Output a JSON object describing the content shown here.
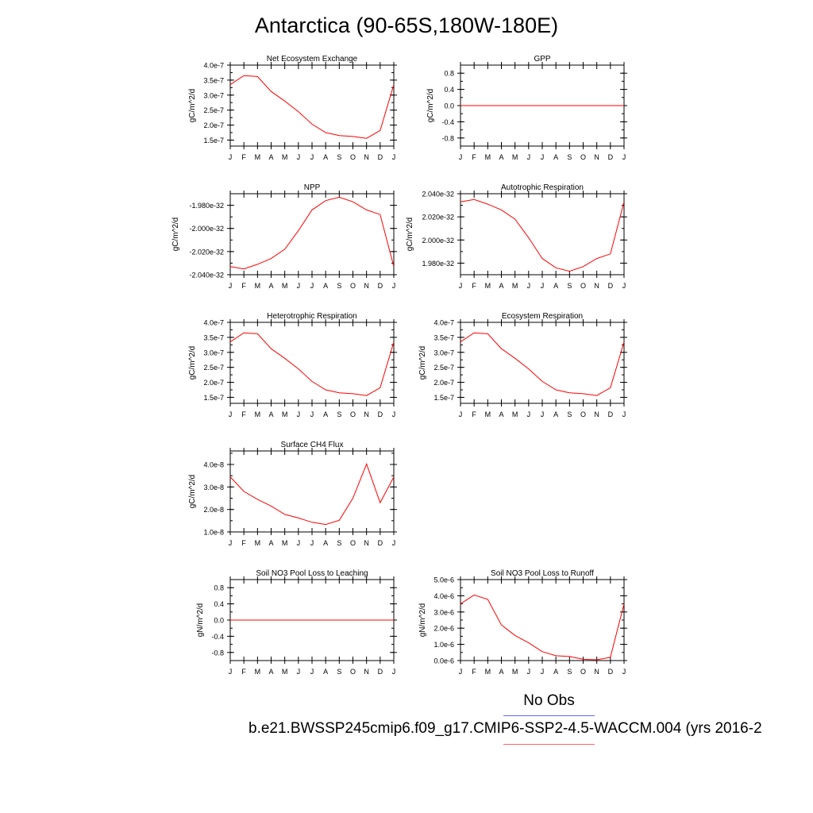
{
  "title": "Antarctica (90-65S,180W-180E)",
  "legend": {
    "obs_label": "No Obs",
    "case_label": "b.e21.BWSSP245cmip6.f09_g17.CMIP6-SSP2-4.5-WACCM.004 (yrs 2016-2",
    "obs_color": "#0000ff",
    "case_color": "#ff0000"
  },
  "chart_data": [
    {
      "type": "line",
      "title": "Net Ecosystem Exchange",
      "ylabel": "gC/m^2/d",
      "x": [
        "J",
        "F",
        "M",
        "A",
        "M",
        "J",
        "J",
        "A",
        "S",
        "O",
        "N",
        "D",
        "J"
      ],
      "yticks": [
        "1.5e-7",
        "2.0e-7",
        "2.5e-7",
        "3.0e-7",
        "3.5e-7",
        "4.0e-7"
      ],
      "ytick_values": [
        1.5e-07,
        2e-07,
        2.5e-07,
        3e-07,
        3.5e-07,
        4e-07
      ],
      "ylim": [
        1.3e-07,
        4e-07
      ],
      "series": [
        {
          "values": [
            3.35e-07,
            3.65e-07,
            3.62e-07,
            3.12e-07,
            2.8e-07,
            2.45e-07,
            2.03e-07,
            1.75e-07,
            1.65e-07,
            1.62e-07,
            1.56e-07,
            1.82e-07,
            3.35e-07
          ],
          "color": "#ff0000"
        }
      ]
    },
    {
      "type": "line",
      "title": "GPP",
      "ylabel": "gC/m^2/d",
      "x": [
        "J",
        "F",
        "M",
        "A",
        "M",
        "J",
        "J",
        "A",
        "S",
        "O",
        "N",
        "D",
        "J"
      ],
      "yticks": [
        "-0.8",
        "-0.4",
        "0.0",
        "0.4",
        "0.8"
      ],
      "ytick_values": [
        -0.8,
        -0.4,
        0.0,
        0.4,
        0.8
      ],
      "ylim": [
        -1.0,
        1.0
      ],
      "series": [
        {
          "values": [
            0,
            0,
            0,
            0,
            0,
            0,
            0,
            0,
            0,
            0,
            0,
            0,
            0
          ],
          "color": "#ff0000"
        }
      ]
    },
    {
      "type": "line",
      "title": "NPP",
      "ylabel": "gC/m^2/d",
      "x": [
        "J",
        "F",
        "M",
        "A",
        "M",
        "J",
        "J",
        "A",
        "S",
        "O",
        "N",
        "D",
        "J"
      ],
      "yticks": [
        "-2.040e-32",
        "-2.020e-32",
        "-2.000e-32",
        "-1.980e-32"
      ],
      "ytick_values": [
        -2.04e-32,
        -2.02e-32,
        -2e-32,
        -1.98e-32
      ],
      "ylim": [
        -2.04e-32,
        -1.97e-32
      ],
      "series": [
        {
          "values": [
            -2.033e-32,
            -2.035e-32,
            -2.031e-32,
            -2.026e-32,
            -2.018e-32,
            -2.002e-32,
            -1.984e-32,
            -1.976e-32,
            -1.973e-32,
            -1.977e-32,
            -1.984e-32,
            -1.988e-32,
            -2.033e-32
          ],
          "color": "#ff0000"
        }
      ]
    },
    {
      "type": "line",
      "title": "Autotrophic Respiration",
      "ylabel": "gC/m^2/d",
      "x": [
        "J",
        "F",
        "M",
        "A",
        "M",
        "J",
        "J",
        "A",
        "S",
        "O",
        "N",
        "D",
        "J"
      ],
      "yticks": [
        "1.980e-32",
        "2.000e-32",
        "2.020e-32",
        "2.040e-32"
      ],
      "ytick_values": [
        1.98e-32,
        2e-32,
        2.02e-32,
        2.04e-32
      ],
      "ylim": [
        1.97e-32,
        2.04e-32
      ],
      "series": [
        {
          "values": [
            2.033e-32,
            2.035e-32,
            2.031e-32,
            2.026e-32,
            2.018e-32,
            2.002e-32,
            1.984e-32,
            1.976e-32,
            1.973e-32,
            1.977e-32,
            1.984e-32,
            1.988e-32,
            2.033e-32
          ],
          "color": "#ff0000"
        }
      ]
    },
    {
      "type": "line",
      "title": "Heterotrophic Respiration",
      "ylabel": "gC/m^2/d",
      "x": [
        "J",
        "F",
        "M",
        "A",
        "M",
        "J",
        "J",
        "A",
        "S",
        "O",
        "N",
        "D",
        "J"
      ],
      "yticks": [
        "1.5e-7",
        "2.0e-7",
        "2.5e-7",
        "3.0e-7",
        "3.5e-7",
        "4.0e-7"
      ],
      "ytick_values": [
        1.5e-07,
        2e-07,
        2.5e-07,
        3e-07,
        3.5e-07,
        4e-07
      ],
      "ylim": [
        1.3e-07,
        4e-07
      ],
      "series": [
        {
          "values": [
            3.35e-07,
            3.65e-07,
            3.62e-07,
            3.12e-07,
            2.8e-07,
            2.45e-07,
            2.03e-07,
            1.75e-07,
            1.65e-07,
            1.62e-07,
            1.56e-07,
            1.82e-07,
            3.35e-07
          ],
          "color": "#ff0000"
        }
      ]
    },
    {
      "type": "line",
      "title": "Ecosystem Respiration",
      "ylabel": "gC/m^2/d",
      "x": [
        "J",
        "F",
        "M",
        "A",
        "M",
        "J",
        "J",
        "A",
        "S",
        "O",
        "N",
        "D",
        "J"
      ],
      "yticks": [
        "1.5e-7",
        "2.0e-7",
        "2.5e-7",
        "3.0e-7",
        "3.5e-7",
        "4.0e-7"
      ],
      "ytick_values": [
        1.5e-07,
        2e-07,
        2.5e-07,
        3e-07,
        3.5e-07,
        4e-07
      ],
      "ylim": [
        1.3e-07,
        4e-07
      ],
      "series": [
        {
          "values": [
            3.35e-07,
            3.65e-07,
            3.62e-07,
            3.12e-07,
            2.8e-07,
            2.45e-07,
            2.03e-07,
            1.75e-07,
            1.65e-07,
            1.62e-07,
            1.56e-07,
            1.82e-07,
            3.35e-07
          ],
          "color": "#ff0000"
        }
      ]
    },
    {
      "type": "line",
      "title": "Surface CH4 Flux",
      "ylabel": "gC/m^2/d",
      "x": [
        "J",
        "F",
        "M",
        "A",
        "M",
        "J",
        "J",
        "A",
        "S",
        "O",
        "N",
        "D",
        "J"
      ],
      "yticks": [
        "1.0e-8",
        "2.0e-8",
        "3.0e-8",
        "4.0e-8"
      ],
      "ytick_values": [
        1e-08,
        2e-08,
        3e-08,
        4e-08
      ],
      "ylim": [
        1e-08,
        4.6e-08
      ],
      "series": [
        {
          "values": [
            3.45e-08,
            2.8e-08,
            2.45e-08,
            2.15e-08,
            1.78e-08,
            1.62e-08,
            1.43e-08,
            1.33e-08,
            1.52e-08,
            2.5e-08,
            4.02e-08,
            2.3e-08,
            3.45e-08
          ],
          "color": "#ff0000"
        }
      ]
    },
    null,
    {
      "type": "line",
      "title": "Soil NO3 Pool Loss to Leaching",
      "ylabel": "gN/m^2/d",
      "x": [
        "J",
        "F",
        "M",
        "A",
        "M",
        "J",
        "J",
        "A",
        "S",
        "O",
        "N",
        "D",
        "J"
      ],
      "yticks": [
        "-0.8",
        "-0.4",
        "0.0",
        "0.4",
        "0.8"
      ],
      "ytick_values": [
        -0.8,
        -0.4,
        0.0,
        0.4,
        0.8
      ],
      "ylim": [
        -1.0,
        1.0
      ],
      "series": [
        {
          "values": [
            0,
            0,
            0,
            0,
            0,
            0,
            0,
            0,
            0,
            0,
            0,
            0,
            0
          ],
          "color": "#ff0000"
        }
      ]
    },
    {
      "type": "line",
      "title": "Soil NO3 Pool Loss to Runoff",
      "ylabel": "gN/m^2/d",
      "x": [
        "J",
        "F",
        "M",
        "A",
        "M",
        "J",
        "J",
        "A",
        "S",
        "O",
        "N",
        "D",
        "J"
      ],
      "yticks": [
        "0.0e-6",
        "1.0e-6",
        "2.0e-6",
        "3.0e-6",
        "4.0e-6",
        "5.0e-6"
      ],
      "ytick_values": [
        0.0,
        1e-06,
        2e-06,
        3e-06,
        4e-06,
        5e-06
      ],
      "ylim": [
        0.0,
        5e-06
      ],
      "series": [
        {
          "values": [
            3.5e-06,
            4.05e-06,
            3.78e-06,
            2.2e-06,
            1.55e-06,
            1.1e-06,
            5.5e-07,
            3e-07,
            2.5e-07,
            8e-08,
            5e-08,
            2e-07,
            3.5e-06
          ],
          "color": "#ff0000"
        }
      ]
    }
  ]
}
